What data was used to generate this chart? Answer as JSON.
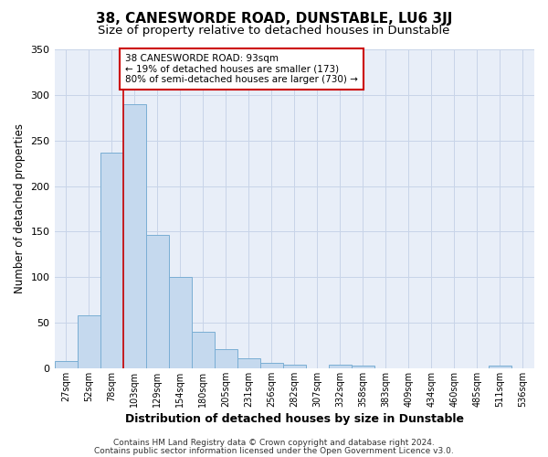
{
  "title": "38, CANESWORDE ROAD, DUNSTABLE, LU6 3JJ",
  "subtitle": "Size of property relative to detached houses in Dunstable",
  "xlabel": "Distribution of detached houses by size in Dunstable",
  "ylabel": "Number of detached properties",
  "categories": [
    "27sqm",
    "52sqm",
    "78sqm",
    "103sqm",
    "129sqm",
    "154sqm",
    "180sqm",
    "205sqm",
    "231sqm",
    "256sqm",
    "282sqm",
    "307sqm",
    "332sqm",
    "358sqm",
    "383sqm",
    "409sqm",
    "434sqm",
    "460sqm",
    "485sqm",
    "511sqm",
    "536sqm"
  ],
  "values": [
    8,
    58,
    237,
    290,
    146,
    100,
    40,
    21,
    11,
    6,
    4,
    0,
    4,
    3,
    0,
    0,
    0,
    0,
    0,
    3,
    0
  ],
  "bar_color": "#c5d9ee",
  "bar_edge_color": "#7aaed4",
  "grid_color": "#c8d4e8",
  "background_color": "#e8eef8",
  "property_line_x": 2.5,
  "annotation_text": "38 CANESWORDE ROAD: 93sqm\n← 19% of detached houses are smaller (173)\n80% of semi-detached houses are larger (730) →",
  "annotation_box_color": "#ffffff",
  "annotation_box_edge_color": "#cc0000",
  "footer_line1": "Contains HM Land Registry data © Crown copyright and database right 2024.",
  "footer_line2": "Contains public sector information licensed under the Open Government Licence v3.0.",
  "ylim": [
    0,
    350
  ],
  "title_fontsize": 11,
  "subtitle_fontsize": 9.5,
  "xlabel_fontsize": 9,
  "ylabel_fontsize": 8.5,
  "tick_fontsize": 7,
  "annotation_fontsize": 7.5,
  "footer_fontsize": 6.5
}
